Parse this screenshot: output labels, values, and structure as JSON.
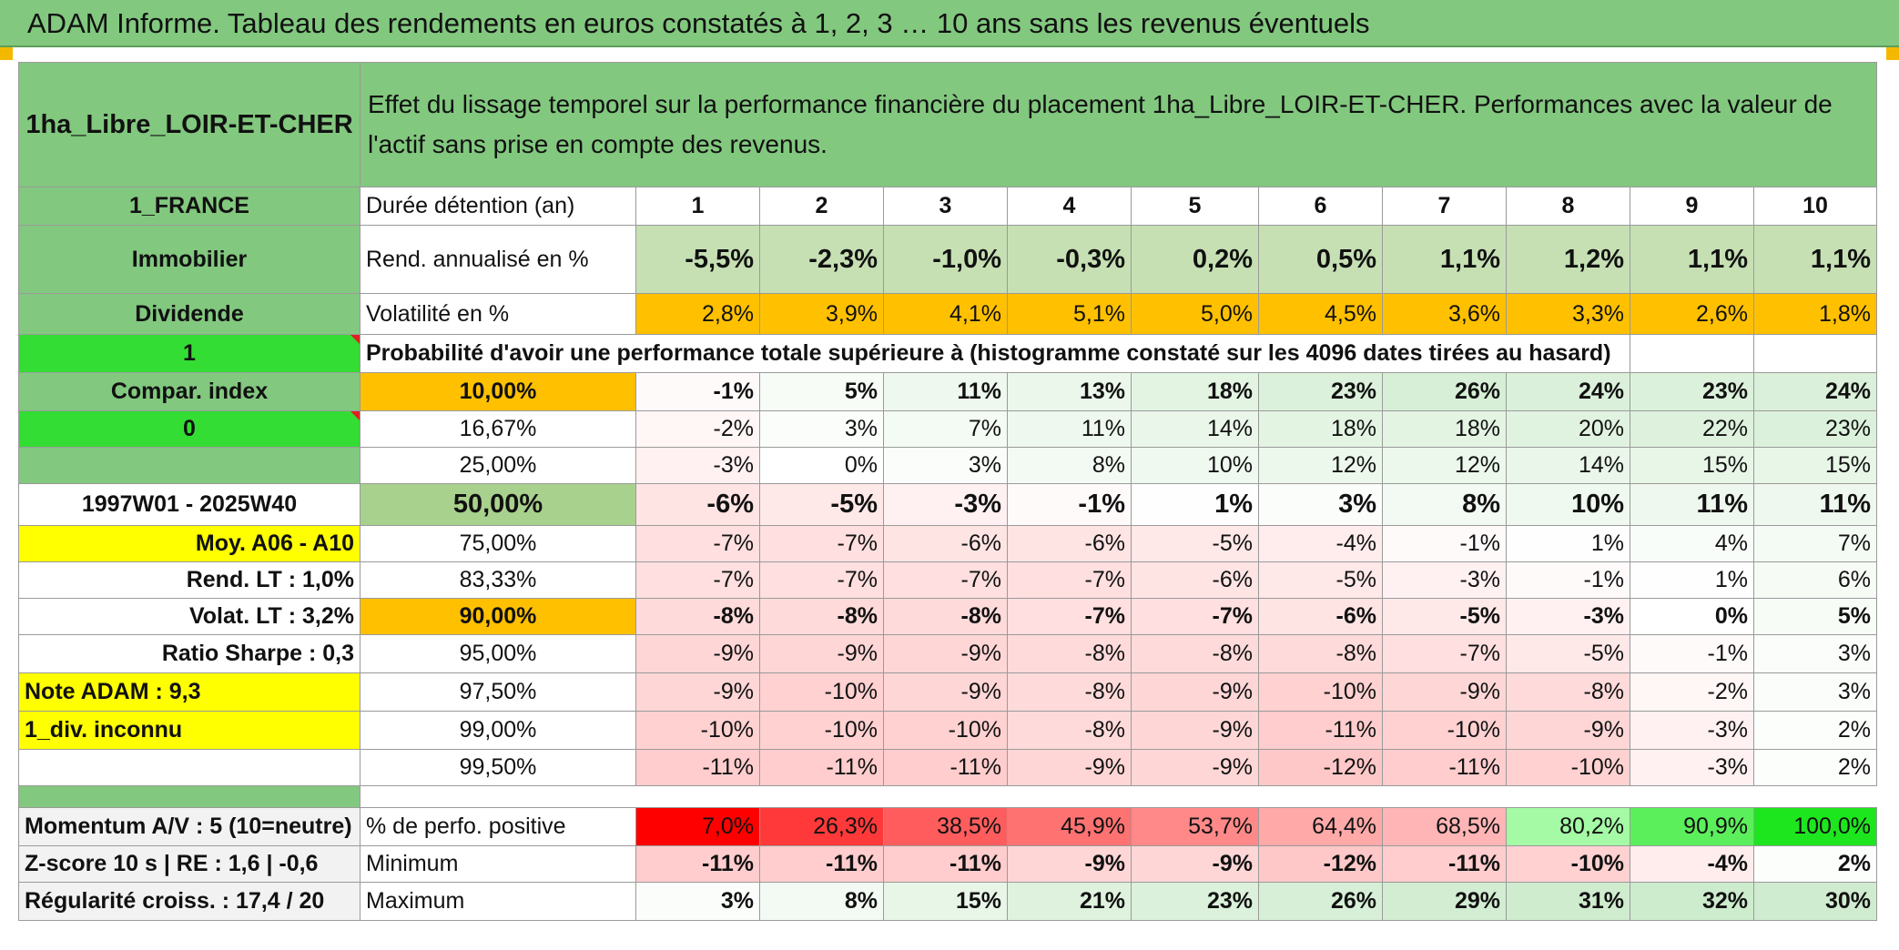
{
  "title": "ADAM Informe. Tableau des rendements en euros constatés à 1, 2, 3 … 10 ans sans les revenus éventuels",
  "asset_name": "1ha_Libre_LOIR-ET-CHER",
  "description": "Effet du lissage temporel sur la performance financière du placement 1ha_Libre_LOIR-ET-CHER. Performances avec la valeur de l'actif sans prise en compte des revenus.",
  "colors": {
    "header_green": "#82c87f",
    "volatility_orange": "#ffc000",
    "bright_green": "#33dd33",
    "yellow": "#ffff00",
    "red_text": "#d01010"
  },
  "left_labels": {
    "country": "1_FRANCE",
    "category": "Immobilier",
    "income_type": "Dividende",
    "flag_1": "1",
    "compar_index": "Compar. index",
    "flag_0": "0",
    "period": "1997W01 - 2025W40",
    "moy": "Moy. A06 - A10",
    "rend_lt": "Rend. LT :   1,0%",
    "volat_lt": "Volat. LT :   3,2%",
    "sharpe": "Ratio Sharpe :    0,3",
    "note": "Note ADAM : 9,3",
    "div": "1_div. inconnu",
    "momentum": "Momentum A/V : 5 (10=neutre)",
    "zscore": "Z-score 10 s | RE : 1,6 | -0,6",
    "regularite": "Régularité croiss. : 17,4 / 20"
  },
  "duration_label": "Durée détention (an)",
  "years": [
    "1",
    "2",
    "3",
    "4",
    "5",
    "6",
    "7",
    "8",
    "9",
    "10"
  ],
  "rend_label": "Rend. annualisé en %",
  "rend": [
    "-5,5%",
    "-2,3%",
    "-1,0%",
    "-0,3%",
    "0,2%",
    "0,5%",
    "1,1%",
    "1,2%",
    "1,1%",
    "1,1%"
  ],
  "vol_label": "Volatilité en %",
  "vol": [
    "2,8%",
    "3,9%",
    "4,1%",
    "5,1%",
    "5,0%",
    "4,5%",
    "3,6%",
    "3,3%",
    "2,6%",
    "1,8%"
  ],
  "prob_title": "Probabilité d'avoir une performance totale supérieure à (histogramme constaté sur les 4096 dates tirées au hasard)",
  "prob_rows": [
    {
      "pct": "10,00%",
      "values": [
        "-1%",
        "5%",
        "11%",
        "13%",
        "18%",
        "23%",
        "26%",
        "24%",
        "23%",
        "24%"
      ]
    },
    {
      "pct": "16,67%",
      "values": [
        "-2%",
        "3%",
        "7%",
        "11%",
        "14%",
        "18%",
        "18%",
        "20%",
        "22%",
        "23%"
      ]
    },
    {
      "pct": "25,00%",
      "values": [
        "-3%",
        "0%",
        "3%",
        "8%",
        "10%",
        "12%",
        "12%",
        "14%",
        "15%",
        "15%"
      ]
    },
    {
      "pct": "50,00%",
      "values": [
        "-6%",
        "-5%",
        "-3%",
        "-1%",
        "1%",
        "3%",
        "8%",
        "10%",
        "11%",
        "11%"
      ]
    },
    {
      "pct": "75,00%",
      "values": [
        "-7%",
        "-7%",
        "-6%",
        "-6%",
        "-5%",
        "-4%",
        "-1%",
        "1%",
        "4%",
        "7%"
      ]
    },
    {
      "pct": "83,33%",
      "values": [
        "-7%",
        "-7%",
        "-7%",
        "-7%",
        "-6%",
        "-5%",
        "-3%",
        "-1%",
        "1%",
        "6%"
      ]
    },
    {
      "pct": "90,00%",
      "values": [
        "-8%",
        "-8%",
        "-8%",
        "-7%",
        "-7%",
        "-6%",
        "-5%",
        "-3%",
        "0%",
        "5%"
      ]
    },
    {
      "pct": "95,00%",
      "values": [
        "-9%",
        "-9%",
        "-9%",
        "-8%",
        "-8%",
        "-8%",
        "-7%",
        "-5%",
        "-1%",
        "3%"
      ]
    },
    {
      "pct": "97,50%",
      "values": [
        "-9%",
        "-10%",
        "-9%",
        "-8%",
        "-9%",
        "-10%",
        "-9%",
        "-8%",
        "-2%",
        "3%"
      ]
    },
    {
      "pct": "99,00%",
      "values": [
        "-10%",
        "-10%",
        "-10%",
        "-8%",
        "-9%",
        "-11%",
        "-10%",
        "-9%",
        "-3%",
        "2%"
      ]
    },
    {
      "pct": "99,50%",
      "values": [
        "-11%",
        "-11%",
        "-11%",
        "-9%",
        "-9%",
        "-12%",
        "-11%",
        "-10%",
        "-3%",
        "2%"
      ]
    }
  ],
  "pos_label": "% de perfo. positive",
  "pos": [
    "7,0%",
    "26,3%",
    "38,5%",
    "45,9%",
    "53,7%",
    "64,4%",
    "68,5%",
    "80,2%",
    "90,9%",
    "100,0%"
  ],
  "min_label": "Minimum",
  "min": [
    "-11%",
    "-11%",
    "-11%",
    "-9%",
    "-9%",
    "-12%",
    "-11%",
    "-10%",
    "-4%",
    "2%"
  ],
  "max_label": "Maximum",
  "max": [
    "3%",
    "8%",
    "15%",
    "21%",
    "23%",
    "26%",
    "29%",
    "31%",
    "32%",
    "30%"
  ]
}
